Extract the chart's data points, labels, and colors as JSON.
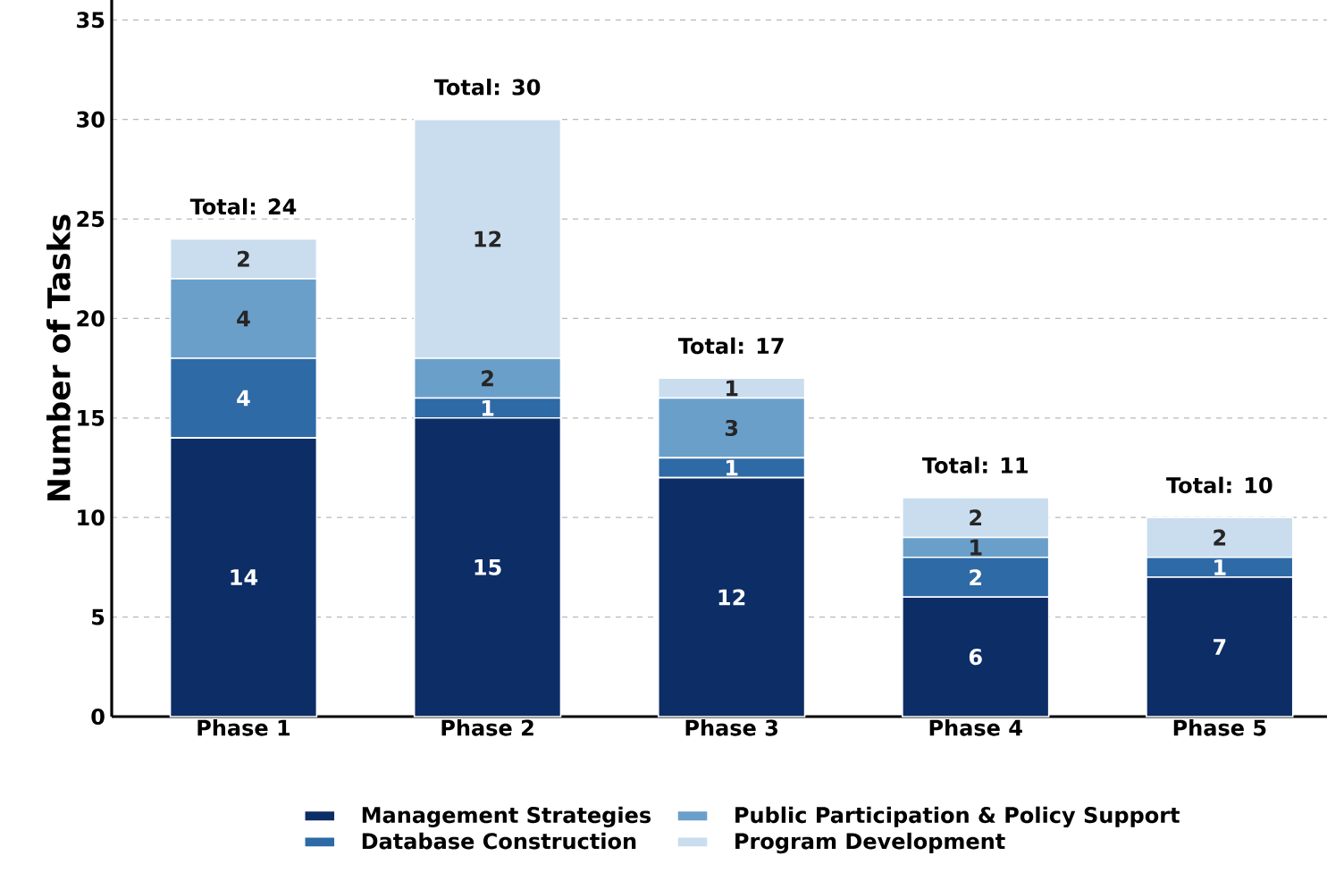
{
  "chart_data": {
    "type": "bar",
    "stacked": true,
    "ylabel": "Number of Tasks",
    "categories": [
      "Phase 1",
      "Phase 2",
      "Phase 3",
      "Phase 4",
      "Phase 5"
    ],
    "series": [
      {
        "name": "Management Strategies",
        "color": "#0d2d66",
        "values": [
          14,
          15,
          12,
          6,
          7
        ],
        "value_labels": [
          "14",
          "15",
          "12",
          "6",
          "7"
        ]
      },
      {
        "name": "Database Construction",
        "color": "#2e6aa5",
        "values": [
          4,
          1,
          1,
          2,
          1
        ],
        "value_labels": [
          "4",
          "1",
          "1",
          "2",
          "1"
        ]
      },
      {
        "name": "Public Participation & Policy Support",
        "color": "#6a9fca",
        "values": [
          4,
          2,
          3,
          1,
          0
        ],
        "value_labels": [
          "4",
          "2",
          "3",
          "1",
          null
        ]
      },
      {
        "name": "Program Development",
        "color": "#c9ddee",
        "values": [
          2,
          12,
          1,
          2,
          2
        ],
        "value_labels": [
          "2",
          "12",
          "1",
          "2",
          "2"
        ]
      }
    ],
    "totals": [
      "Total: 24",
      "Total: 30",
      "Total: 17",
      "Total: 11",
      "Total: 10"
    ],
    "ylim": [
      0,
      36
    ],
    "yticks": [
      0,
      5,
      10,
      15,
      20,
      25,
      30,
      35
    ],
    "grid": "y",
    "legend": "bottom"
  }
}
